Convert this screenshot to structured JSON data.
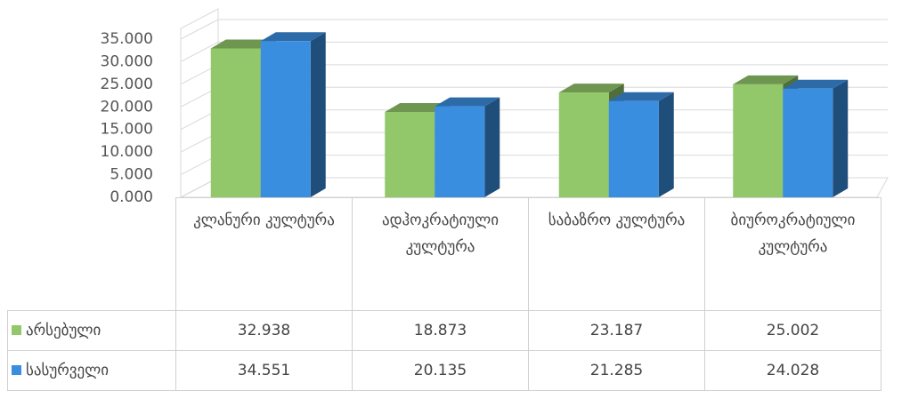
{
  "chart_data": {
    "type": "bar3d",
    "categories": [
      "კლანური კულტურა",
      "ადჰოკრატიული კულტურა",
      "საბაზრო კულტურა",
      "ბიუროკრატიული კულტურა"
    ],
    "series": [
      {
        "name": "არსებული",
        "color": "#92c86a",
        "values": [
          32.938,
          18.873,
          23.187,
          25.002
        ]
      },
      {
        "name": "სასურველი",
        "color": "#3a8ee0",
        "values": [
          34.551,
          20.135,
          21.285,
          24.028
        ]
      }
    ],
    "ylim": [
      0,
      35
    ],
    "yticks": [
      {
        "value": 0,
        "label": "0.000"
      },
      {
        "value": 5,
        "label": "5.000"
      },
      {
        "value": 10,
        "label": "10.000"
      },
      {
        "value": 15,
        "label": "15.000"
      },
      {
        "value": 20,
        "label": "20.000"
      },
      {
        "value": 25,
        "label": "25.000"
      },
      {
        "value": 30,
        "label": "30.000"
      },
      {
        "value": 35,
        "label": "35.000"
      }
    ],
    "grid": true,
    "legend": "table"
  }
}
